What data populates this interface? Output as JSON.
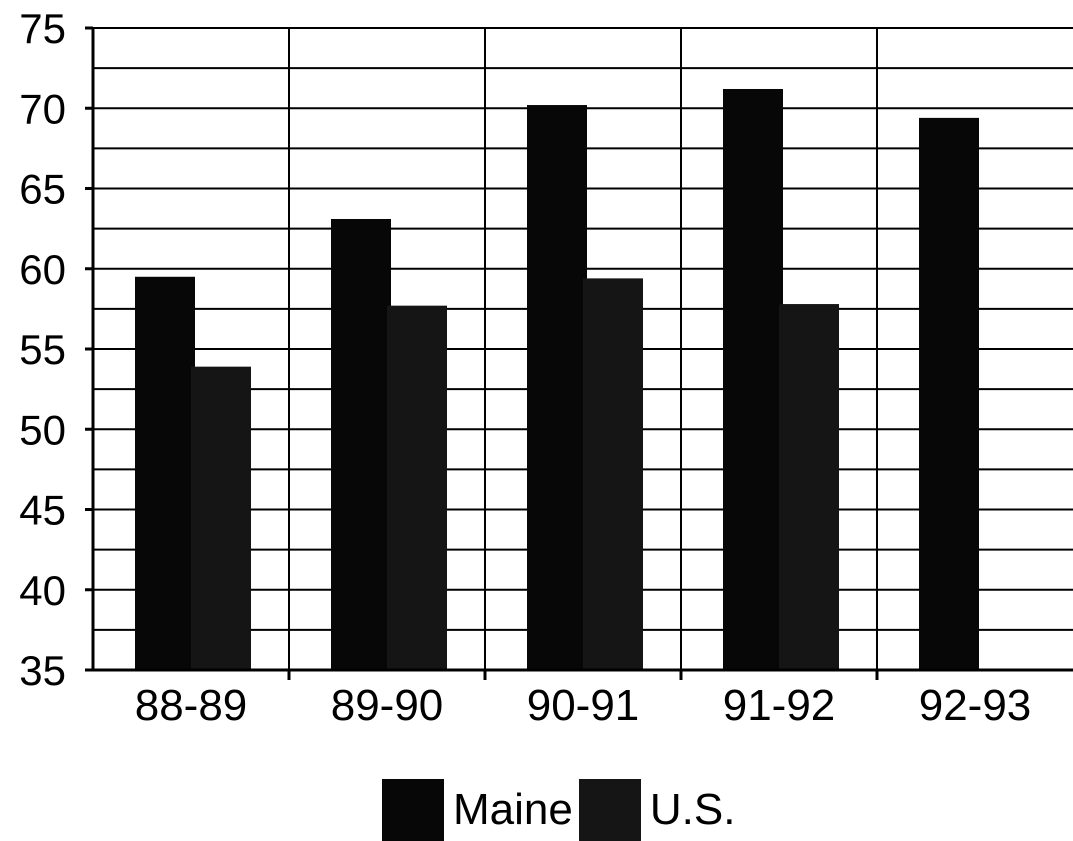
{
  "chart_data": {
    "type": "bar",
    "title": "",
    "xlabel": "",
    "ylabel": "",
    "categories": [
      "88-89",
      "89-90",
      "90-91",
      "91-92",
      "92-93"
    ],
    "series": [
      {
        "name": "Maine",
        "values": [
          59.5,
          63.1,
          70.2,
          71.2,
          69.4
        ],
        "color": "#070707"
      },
      {
        "name": "U.S.",
        "values": [
          53.9,
          57.7,
          59.4,
          57.8,
          null
        ],
        "color": "#151515"
      }
    ],
    "ylim": [
      35,
      75
    ],
    "yticks": [
      35,
      40,
      45,
      50,
      55,
      60,
      65,
      70,
      75
    ],
    "ytick_labels": [
      "35",
      "40",
      "45",
      "50",
      "55",
      "60",
      "65",
      "70",
      "75"
    ],
    "minor_gridline_step": 2.5,
    "grid": true,
    "legend_position": "bottom-center"
  }
}
